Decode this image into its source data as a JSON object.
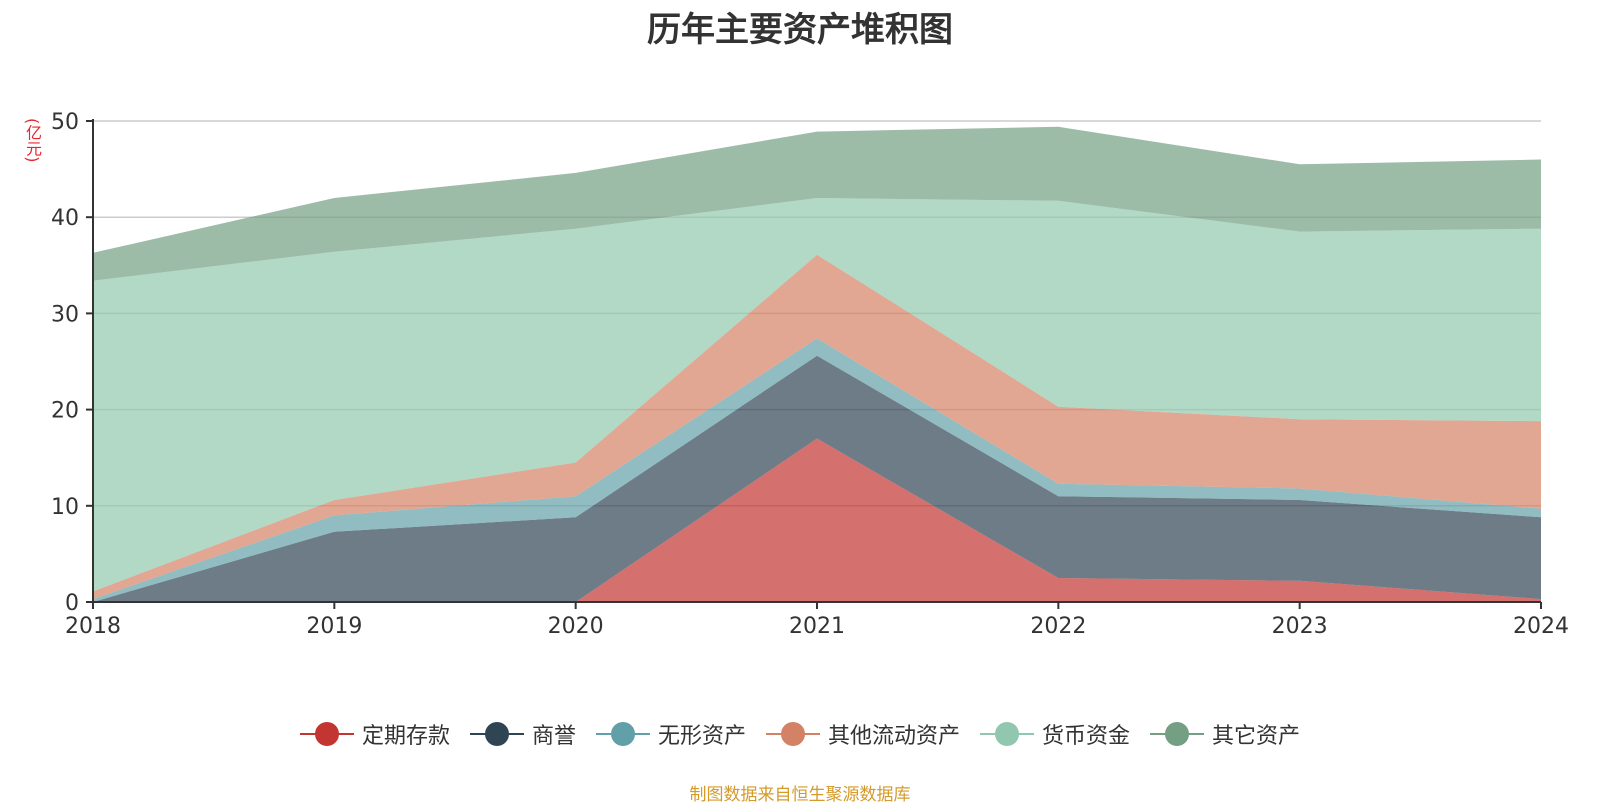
{
  "chart_data": {
    "type": "area",
    "stacked": true,
    "title": "历年主要资产堆积图",
    "unit": "(亿元)",
    "x": [
      "2018",
      "2019",
      "2020",
      "2021",
      "2022",
      "2023",
      "2024"
    ],
    "ylim": [
      0,
      50
    ],
    "yticks": [
      0,
      10,
      20,
      30,
      40,
      50
    ],
    "grid": true,
    "legend_position": "bottom",
    "series": [
      {
        "name": "定期存款",
        "color": "#c23531",
        "values": [
          0,
          0,
          0,
          17.0,
          2.5,
          2.2,
          0.3
        ]
      },
      {
        "name": "商誉",
        "color": "#2f4554",
        "values": [
          0,
          7.3,
          8.8,
          8.6,
          8.5,
          8.4,
          8.5
        ]
      },
      {
        "name": "无形资产",
        "color": "#61a0a8",
        "values": [
          0.3,
          1.7,
          2.2,
          1.8,
          1.3,
          1.2,
          0.9
        ]
      },
      {
        "name": "其他流动资产",
        "color": "#d48265",
        "values": [
          0.8,
          1.6,
          3.5,
          8.7,
          8.0,
          7.2,
          9.1
        ]
      },
      {
        "name": "货币资金",
        "color": "#91c7ae",
        "values": [
          32.3,
          25.8,
          24.3,
          5.9,
          21.4,
          19.5,
          20.0
        ]
      },
      {
        "name": "其它资产",
        "color": "#749f83",
        "values": [
          2.9,
          5.6,
          5.8,
          6.9,
          7.7,
          7.0,
          7.2
        ]
      }
    ]
  },
  "footer": {
    "source": "制图数据来自恒生聚源数据库"
  }
}
